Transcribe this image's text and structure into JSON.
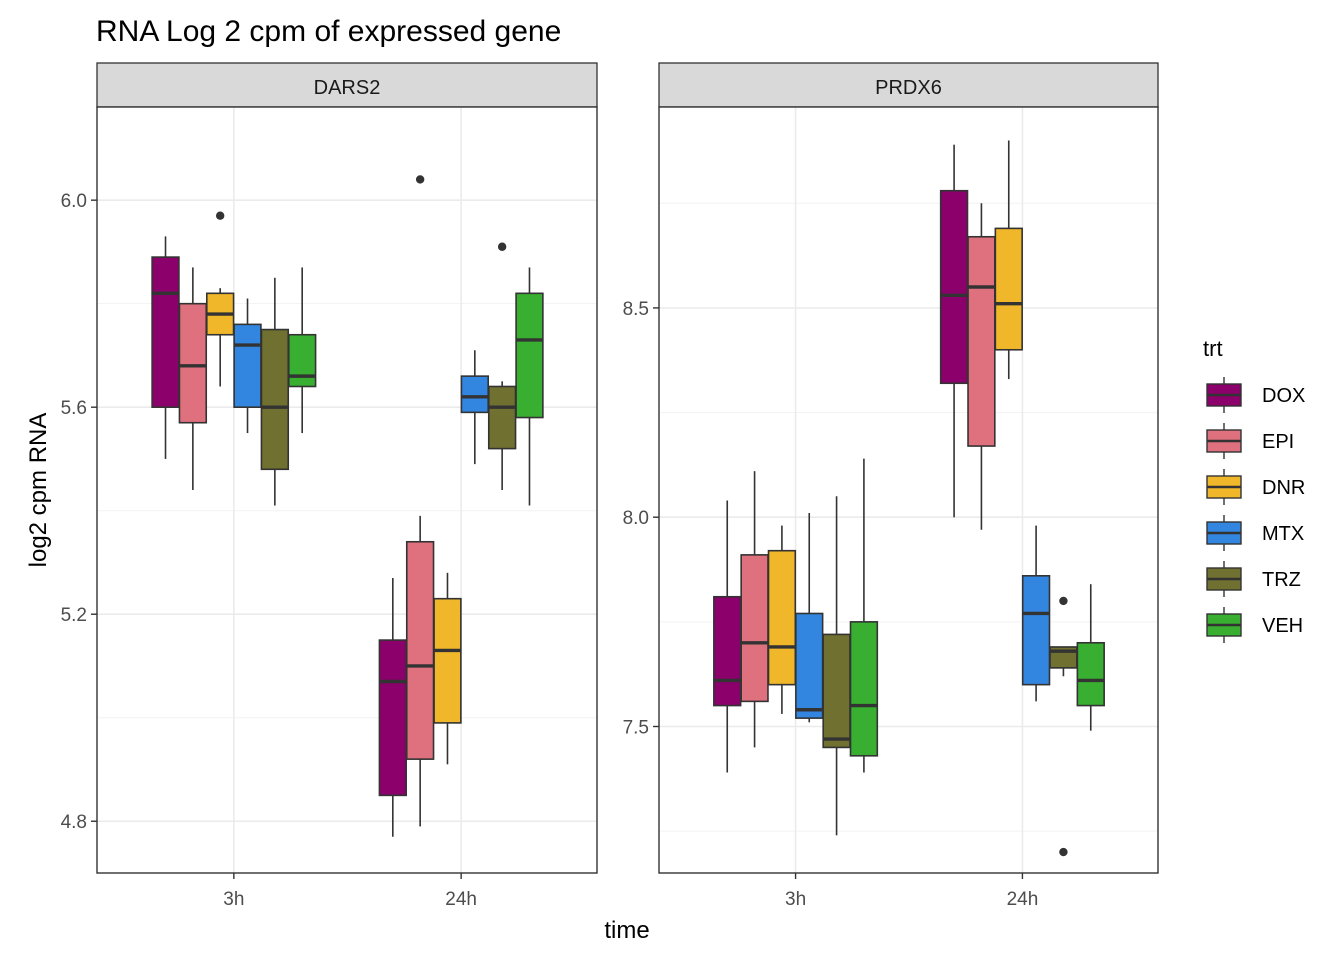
{
  "chart_data": {
    "type": "boxplot",
    "title": "RNA Log 2 cpm of expressed gene",
    "xlabel": "time",
    "ylabel": "log2 cpm RNA",
    "categories": [
      "3h",
      "24h"
    ],
    "legend": {
      "title": "trt",
      "placement": "right",
      "entries": [
        {
          "name": "DOX",
          "color": "#8B006B"
        },
        {
          "name": "EPI",
          "color": "#DF707E"
        },
        {
          "name": "DNR",
          "color": "#F1B72B"
        },
        {
          "name": "MTX",
          "color": "#3386E0"
        },
        {
          "name": "TRZ",
          "color": "#707030"
        },
        {
          "name": "VEH",
          "color": "#38AF30"
        }
      ]
    },
    "grid": true,
    "panels": [
      {
        "strip": "DARS2",
        "ylim": [
          4.7,
          6.18
        ],
        "yticks": [
          4.8,
          5.2,
          5.6,
          6.0
        ],
        "yticklabels": [
          "4.8",
          "5.2",
          "5.6",
          "6.0"
        ],
        "boxes": [
          {
            "time": "3h",
            "trt": "DOX",
            "min": 5.5,
            "q1": 5.6,
            "median": 5.82,
            "q3": 5.89,
            "max": 5.93,
            "outliers": []
          },
          {
            "time": "3h",
            "trt": "EPI",
            "min": 5.44,
            "q1": 5.57,
            "median": 5.68,
            "q3": 5.8,
            "max": 5.87,
            "outliers": []
          },
          {
            "time": "3h",
            "trt": "DNR",
            "min": 5.64,
            "q1": 5.74,
            "median": 5.78,
            "q3": 5.82,
            "max": 5.83,
            "outliers": [
              5.97
            ]
          },
          {
            "time": "3h",
            "trt": "MTX",
            "min": 5.55,
            "q1": 5.6,
            "median": 5.72,
            "q3": 5.76,
            "max": 5.81,
            "outliers": []
          },
          {
            "time": "3h",
            "trt": "TRZ",
            "min": 5.41,
            "q1": 5.48,
            "median": 5.6,
            "q3": 5.75,
            "max": 5.85,
            "outliers": []
          },
          {
            "time": "3h",
            "trt": "VEH",
            "min": 5.55,
            "q1": 5.64,
            "median": 5.66,
            "q3": 5.74,
            "max": 5.87,
            "outliers": []
          },
          {
            "time": "24h",
            "trt": "DOX",
            "min": 4.77,
            "q1": 4.85,
            "median": 5.07,
            "q3": 5.15,
            "max": 5.27,
            "outliers": []
          },
          {
            "time": "24h",
            "trt": "EPI",
            "min": 4.79,
            "q1": 4.92,
            "median": 5.1,
            "q3": 5.34,
            "max": 5.39,
            "outliers": [
              6.04
            ]
          },
          {
            "time": "24h",
            "trt": "DNR",
            "min": 4.91,
            "q1": 4.99,
            "median": 5.13,
            "q3": 5.23,
            "max": 5.28,
            "outliers": []
          },
          {
            "time": "24h",
            "trt": "MTX",
            "min": 5.49,
            "q1": 5.59,
            "median": 5.62,
            "q3": 5.66,
            "max": 5.71,
            "outliers": []
          },
          {
            "time": "24h",
            "trt": "TRZ",
            "min": 5.44,
            "q1": 5.52,
            "median": 5.6,
            "q3": 5.64,
            "max": 5.65,
            "outliers": [
              5.91
            ]
          },
          {
            "time": "24h",
            "trt": "VEH",
            "min": 5.41,
            "q1": 5.58,
            "median": 5.73,
            "q3": 5.82,
            "max": 5.87,
            "outliers": []
          }
        ]
      },
      {
        "strip": "PRDX6",
        "ylim": [
          7.15,
          8.98
        ],
        "yticks": [
          7.5,
          8.0,
          8.5
        ],
        "yticklabels": [
          "7.5",
          "8.0",
          "8.5"
        ],
        "boxes": [
          {
            "time": "3h",
            "trt": "DOX",
            "min": 7.39,
            "q1": 7.55,
            "median": 7.61,
            "q3": 7.81,
            "max": 8.04,
            "outliers": []
          },
          {
            "time": "3h",
            "trt": "EPI",
            "min": 7.45,
            "q1": 7.56,
            "median": 7.7,
            "q3": 7.91,
            "max": 8.11,
            "outliers": []
          },
          {
            "time": "3h",
            "trt": "DNR",
            "min": 7.53,
            "q1": 7.6,
            "median": 7.69,
            "q3": 7.92,
            "max": 7.98,
            "outliers": []
          },
          {
            "time": "3h",
            "trt": "MTX",
            "min": 7.51,
            "q1": 7.52,
            "median": 7.54,
            "q3": 7.77,
            "max": 8.01,
            "outliers": []
          },
          {
            "time": "3h",
            "trt": "TRZ",
            "min": 7.24,
            "q1": 7.45,
            "median": 7.47,
            "q3": 7.72,
            "max": 8.05,
            "outliers": []
          },
          {
            "time": "3h",
            "trt": "VEH",
            "min": 7.39,
            "q1": 7.43,
            "median": 7.55,
            "q3": 7.75,
            "max": 8.14,
            "outliers": []
          },
          {
            "time": "24h",
            "trt": "DOX",
            "min": 8.0,
            "q1": 8.32,
            "median": 8.53,
            "q3": 8.78,
            "max": 8.89,
            "outliers": []
          },
          {
            "time": "24h",
            "trt": "EPI",
            "min": 7.97,
            "q1": 8.17,
            "median": 8.55,
            "q3": 8.67,
            "max": 8.75,
            "outliers": []
          },
          {
            "time": "24h",
            "trt": "DNR",
            "min": 8.33,
            "q1": 8.4,
            "median": 8.51,
            "q3": 8.69,
            "max": 8.9,
            "outliers": []
          },
          {
            "time": "24h",
            "trt": "MTX",
            "min": 7.56,
            "q1": 7.6,
            "median": 7.77,
            "q3": 7.86,
            "max": 7.98,
            "outliers": []
          },
          {
            "time": "24h",
            "trt": "TRZ",
            "min": 7.62,
            "q1": 7.64,
            "median": 7.68,
            "q3": 7.69,
            "max": 7.69,
            "outliers": [
              7.8,
              7.2
            ]
          },
          {
            "time": "24h",
            "trt": "VEH",
            "min": 7.49,
            "q1": 7.55,
            "median": 7.61,
            "q3": 7.7,
            "max": 7.84,
            "outliers": []
          }
        ]
      }
    ]
  }
}
